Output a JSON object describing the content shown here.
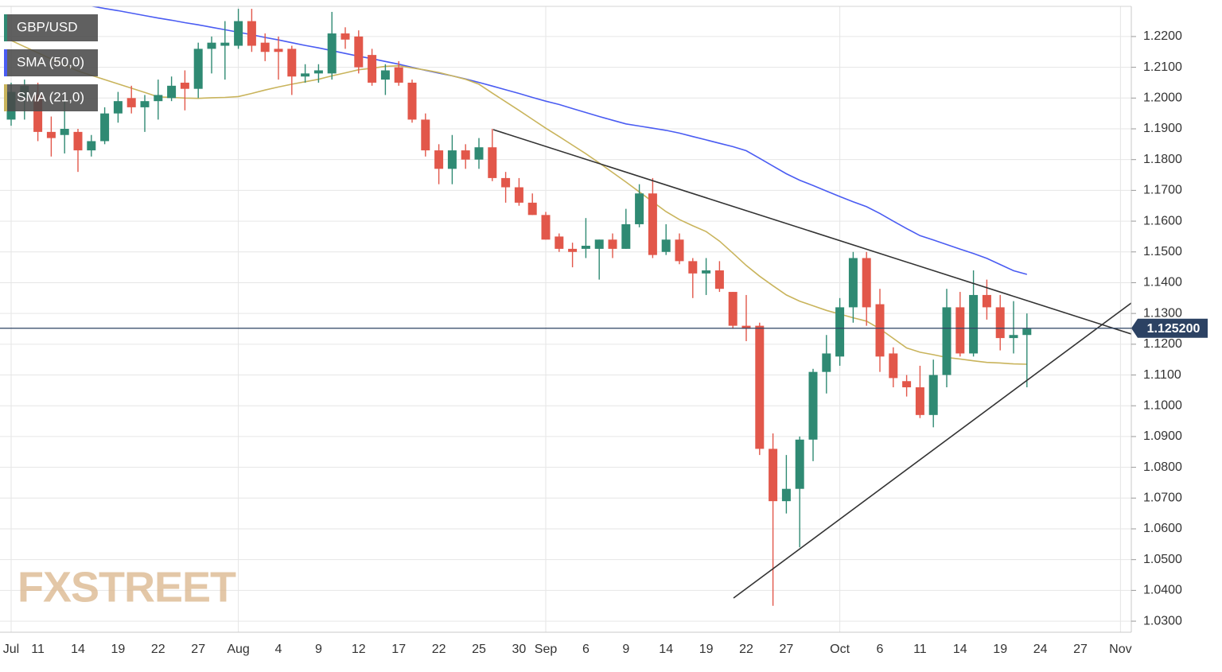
{
  "chart_data": {
    "type": "candlestick",
    "watermark": "FXSTREET",
    "categories": [
      "Jul",
      null,
      "11",
      null,
      null,
      "14",
      null,
      null,
      "19",
      null,
      null,
      "22",
      null,
      null,
      "27",
      null,
      null,
      "Aug",
      null,
      null,
      "4",
      null,
      null,
      "9",
      null,
      null,
      "12",
      null,
      null,
      "17",
      null,
      null,
      "22",
      null,
      null,
      "25",
      null,
      null,
      "30",
      null,
      "Sep",
      null,
      null,
      "6",
      null,
      null,
      "9",
      null,
      null,
      "14",
      null,
      null,
      "19",
      null,
      null,
      "22",
      null,
      null,
      "27",
      null,
      null,
      null,
      "Oct",
      null,
      null,
      "6",
      null,
      null,
      "11",
      null,
      null,
      "14",
      null,
      null,
      "19",
      null,
      null,
      "24",
      null,
      null,
      "27",
      null,
      null,
      "Nov"
    ],
    "series": [
      {
        "name": "GBP/USD",
        "up_color": "#2f8a73",
        "down_color": "#e2574a",
        "open": [
          1.193,
          1.2,
          1.201,
          1.189,
          1.188,
          1.189,
          1.183,
          1.186,
          1.195,
          1.2,
          1.197,
          1.199,
          1.2,
          1.205,
          1.203,
          1.216,
          1.217,
          1.217,
          1.225,
          1.218,
          1.216,
          1.216,
          1.207,
          1.208,
          1.208,
          1.221,
          1.22,
          1.214,
          1.206,
          1.21,
          1.205,
          1.193,
          1.183,
          1.177,
          1.183,
          1.18,
          1.184,
          1.174,
          1.171,
          1.166,
          1.162,
          1.155,
          1.151,
          1.151,
          1.151,
          1.154,
          1.151,
          1.159,
          1.169,
          1.15,
          1.154,
          1.147,
          1.143,
          1.144,
          1.137,
          1.126,
          1.126,
          1.086,
          1.069,
          1.073,
          1.089,
          1.111,
          1.116,
          1.132,
          1.148,
          1.133,
          1.117,
          1.108,
          1.106,
          1.097,
          1.11,
          1.132,
          1.117,
          1.136,
          1.132,
          1.122,
          1.123,
          null,
          null,
          null,
          null,
          null,
          null,
          null
        ],
        "high": [
          1.205,
          1.206,
          1.205,
          1.194,
          1.2,
          1.19,
          1.188,
          1.197,
          1.202,
          1.204,
          1.201,
          1.206,
          1.207,
          1.209,
          1.218,
          1.22,
          1.225,
          1.229,
          1.229,
          1.221,
          1.22,
          1.217,
          1.211,
          1.211,
          1.228,
          1.223,
          1.222,
          1.216,
          1.211,
          1.212,
          1.206,
          1.195,
          1.185,
          1.188,
          1.185,
          1.187,
          1.19,
          1.176,
          1.174,
          1.169,
          1.163,
          1.156,
          1.153,
          1.161,
          1.154,
          1.156,
          1.164,
          1.172,
          1.174,
          1.159,
          1.156,
          1.148,
          1.148,
          1.147,
          1.137,
          1.136,
          1.127,
          1.091,
          1.084,
          1.09,
          1.112,
          1.123,
          1.135,
          1.15,
          1.15,
          1.138,
          1.119,
          1.11,
          1.113,
          1.115,
          1.138,
          1.137,
          1.144,
          1.141,
          1.136,
          1.134,
          1.13,
          null,
          null,
          null,
          null,
          null,
          null,
          null
        ],
        "low": [
          1.191,
          1.193,
          1.186,
          1.181,
          1.182,
          1.176,
          1.181,
          1.185,
          1.192,
          1.195,
          1.189,
          1.193,
          1.199,
          1.196,
          1.2,
          1.208,
          1.206,
          1.216,
          1.215,
          1.212,
          1.206,
          1.201,
          1.205,
          1.205,
          1.206,
          1.216,
          1.208,
          1.204,
          1.201,
          1.204,
          1.192,
          1.181,
          1.172,
          1.172,
          1.177,
          1.177,
          1.173,
          1.166,
          1.165,
          1.162,
          1.154,
          1.15,
          1.145,
          1.148,
          1.141,
          1.148,
          1.151,
          1.158,
          1.148,
          1.149,
          1.146,
          1.135,
          1.136,
          1.137,
          1.125,
          1.121,
          1.084,
          1.035,
          1.065,
          1.054,
          1.082,
          1.104,
          1.113,
          1.127,
          1.126,
          1.111,
          1.106,
          1.103,
          1.096,
          1.093,
          1.106,
          1.116,
          1.116,
          1.128,
          1.118,
          1.117,
          1.106,
          null,
          null,
          null,
          null,
          null,
          null,
          null
        ],
        "close": [
          1.202,
          1.204,
          1.189,
          1.187,
          1.19,
          1.183,
          1.186,
          1.195,
          1.199,
          1.197,
          1.199,
          1.201,
          1.204,
          1.203,
          1.216,
          1.218,
          1.218,
          1.225,
          1.217,
          1.215,
          1.215,
          1.207,
          1.208,
          1.209,
          1.221,
          1.219,
          1.21,
          1.205,
          1.209,
          1.205,
          1.193,
          1.183,
          1.177,
          1.183,
          1.18,
          1.184,
          1.174,
          1.171,
          1.166,
          1.162,
          1.154,
          1.151,
          1.15,
          1.152,
          1.154,
          1.151,
          1.159,
          1.169,
          1.149,
          1.154,
          1.147,
          1.143,
          1.144,
          1.138,
          1.126,
          1.125,
          1.086,
          1.069,
          1.073,
          1.089,
          1.111,
          1.117,
          1.132,
          1.148,
          1.132,
          1.116,
          1.109,
          1.106,
          1.097,
          1.11,
          1.132,
          1.117,
          1.136,
          1.132,
          1.122,
          1.123,
          1.125,
          null,
          null,
          null,
          null,
          null,
          null,
          null
        ]
      },
      {
        "name": "SMA (50,0)",
        "color": "#4a5cf2",
        "values": [
          null,
          null,
          null,
          null,
          null,
          1.2307,
          1.2299,
          1.2291,
          1.2284,
          1.2276,
          1.2268,
          1.226,
          1.2253,
          1.2245,
          1.2238,
          1.223,
          1.2222,
          1.2214,
          1.2206,
          1.2197,
          1.2189,
          1.218,
          1.2171,
          1.2163,
          1.2154,
          1.2145,
          1.2136,
          1.2128,
          1.2119,
          1.211,
          1.21,
          1.209,
          1.2081,
          1.2072,
          1.2062,
          1.2051,
          1.2039,
          1.2027,
          1.2015,
          1.2002,
          1.199,
          1.1979,
          1.1966,
          1.1953,
          1.194,
          1.1928,
          1.1916,
          1.1909,
          1.1902,
          1.1895,
          1.1886,
          1.1875,
          1.1864,
          1.1853,
          1.1842,
          1.1829,
          1.1804,
          1.1779,
          1.1754,
          1.1733,
          1.1716,
          1.1698,
          1.168,
          1.1663,
          1.1647,
          1.1625,
          1.16,
          1.1576,
          1.1553,
          1.1539,
          1.1524,
          1.1509,
          1.1495,
          1.1479,
          1.1459,
          1.1439,
          1.1427,
          null,
          null,
          null,
          null,
          null,
          null,
          null
        ]
      },
      {
        "name": "SMA (21,0)",
        "color": "#c9b45c",
        "values": [
          1.2187,
          1.2167,
          1.2147,
          1.2127,
          1.2107,
          1.2088,
          1.2074,
          1.206,
          1.2046,
          1.2032,
          1.2018,
          1.2004,
          1.2002,
          1.2,
          1.1999,
          1.2001,
          1.2002,
          1.2005,
          1.2015,
          1.2026,
          1.2036,
          1.2045,
          1.2053,
          1.2061,
          1.2072,
          1.2082,
          1.2092,
          1.2097,
          1.2103,
          1.2105,
          1.2098,
          1.2091,
          1.2083,
          1.2072,
          1.2061,
          1.2045,
          1.2016,
          1.1988,
          1.196,
          1.1931,
          1.1902,
          1.1875,
          1.1847,
          1.1819,
          1.1789,
          1.1758,
          1.1727,
          1.1695,
          1.1663,
          1.1631,
          1.1605,
          1.1585,
          1.1566,
          1.1535,
          1.1496,
          1.1456,
          1.1421,
          1.139,
          1.136,
          1.134,
          1.1325,
          1.131,
          1.1298,
          1.1286,
          1.1275,
          1.125,
          1.1219,
          1.1188,
          1.1174,
          1.1166,
          1.1157,
          1.1152,
          1.1146,
          1.1141,
          1.1139,
          1.1136,
          1.1135,
          null,
          null,
          null,
          null,
          null,
          null,
          null
        ]
      }
    ],
    "last_price": {
      "value": 1.1252,
      "label": "1.125200"
    },
    "ylim": [
      1.0264,
      1.2298
    ],
    "yticks": [
      {
        "value": 1.03,
        "label": "1.0300"
      },
      {
        "value": 1.04,
        "label": "1.0400"
      },
      {
        "value": 1.05,
        "label": "1.0500"
      },
      {
        "value": 1.06,
        "label": "1.0600"
      },
      {
        "value": 1.07,
        "label": "1.0700"
      },
      {
        "value": 1.08,
        "label": "1.0800"
      },
      {
        "value": 1.09,
        "label": "1.0900"
      },
      {
        "value": 1.1,
        "label": "1.1000"
      },
      {
        "value": 1.11,
        "label": "1.1100"
      },
      {
        "value": 1.12,
        "label": "1.1200"
      },
      {
        "value": 1.13,
        "label": "1.1300"
      },
      {
        "value": 1.14,
        "label": "1.1400"
      },
      {
        "value": 1.15,
        "label": "1.1500"
      },
      {
        "value": 1.16,
        "label": "1.1600"
      },
      {
        "value": 1.17,
        "label": "1.1700"
      },
      {
        "value": 1.18,
        "label": "1.1800"
      },
      {
        "value": 1.19,
        "label": "1.1900"
      },
      {
        "value": 1.2,
        "label": "1.2000"
      },
      {
        "value": 1.21,
        "label": "1.2100"
      },
      {
        "value": 1.22,
        "label": "1.2200"
      }
    ],
    "grid": true
  }
}
